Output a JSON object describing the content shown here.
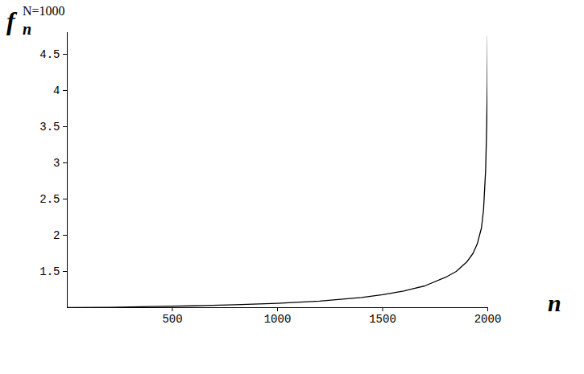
{
  "chart_data": {
    "type": "line",
    "ylabel": {
      "base": "f",
      "sub": "n",
      "sup": "N=1000"
    },
    "xlabel": "n",
    "color": "#000000",
    "x": [
      0,
      200,
      400,
      600,
      800,
      1000,
      1200,
      1400,
      1500,
      1600,
      1700,
      1800,
      1850,
      1900,
      1930,
      1950,
      1970,
      1980,
      1990,
      1995,
      1998,
      2000
    ],
    "values": [
      1.0,
      1.005,
      1.015,
      1.025,
      1.04,
      1.06,
      1.09,
      1.14,
      1.18,
      1.23,
      1.3,
      1.42,
      1.5,
      1.63,
      1.75,
      1.88,
      2.1,
      2.35,
      2.9,
      3.5,
      4.1,
      4.75
    ],
    "xlim": [
      0,
      2000
    ],
    "xticks": [
      500,
      1000,
      1500,
      2000
    ],
    "ylim": [
      1,
      4.8
    ],
    "yticks": [
      1.5,
      2,
      2.5,
      3,
      3.5,
      4,
      4.5
    ],
    "grid": false
  }
}
